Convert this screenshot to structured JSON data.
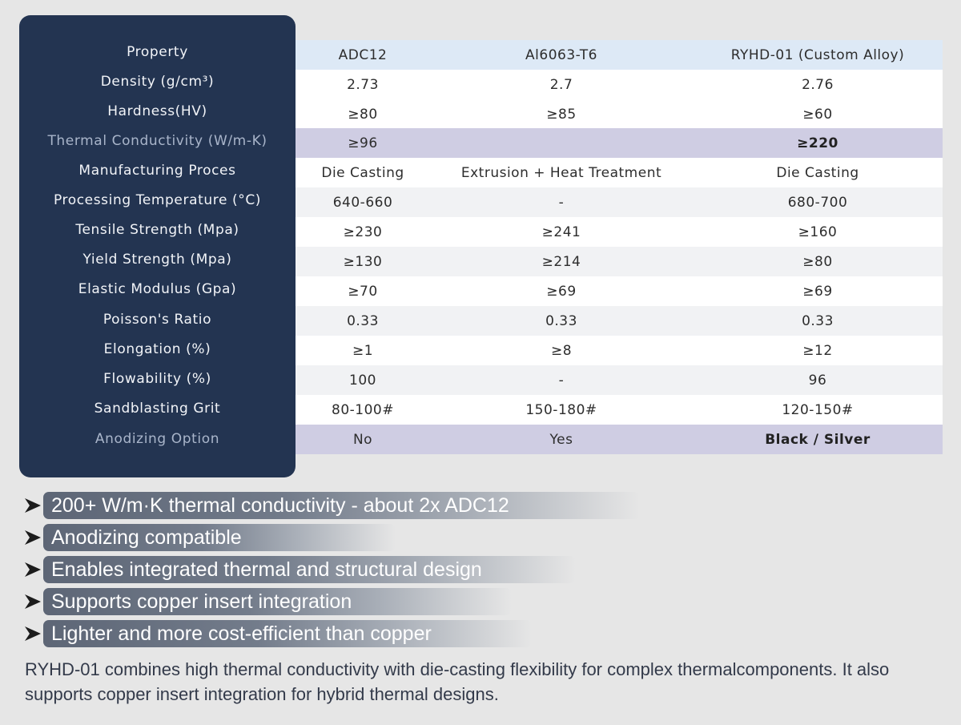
{
  "table": {
    "header": {
      "property": "Property",
      "adc12": "ADC12",
      "al6063": "Al6063-T6",
      "ryhd": "RYHD-01 (Custom Alloy)"
    },
    "rows": [
      {
        "property": "Density (g/cm³)",
        "adc12": "2.73",
        "al6063": "2.7",
        "ryhd": "2.76"
      },
      {
        "property": "Hardness(HV)",
        "adc12": "≥80",
        "al6063": "≥85",
        "ryhd": "≥60"
      },
      {
        "property": "Thermal Conductivity (W/m-K)",
        "adc12": "≥96",
        "al6063": "",
        "ryhd": "≥220"
      },
      {
        "property": "Manufacturing Proces",
        "adc12": "Die Casting",
        "al6063": "Extrusion + Heat Treatment",
        "ryhd": "Die Casting"
      },
      {
        "property": "Processing Temperature (°C)",
        "adc12": "640-660",
        "al6063": "-",
        "ryhd": "680-700"
      },
      {
        "property": "Tensile Strength (Mpa)",
        "adc12": "≥230",
        "al6063": "≥241",
        "ryhd": "≥160"
      },
      {
        "property": "Yield Strength (Mpa)",
        "adc12": "≥130",
        "al6063": "≥214",
        "ryhd": "≥80"
      },
      {
        "property": "Elastic Modulus (Gpa)",
        "adc12": "≥70",
        "al6063": "≥69",
        "ryhd": "≥69"
      },
      {
        "property": "Poisson's Ratio",
        "adc12": "0.33",
        "al6063": "0.33",
        "ryhd": "0.33"
      },
      {
        "property": "Elongation (%)",
        "adc12": "≥1",
        "al6063": "≥8",
        "ryhd": "≥12"
      },
      {
        "property": "Flowability (%)",
        "adc12": "100",
        "al6063": "-",
        "ryhd": "96"
      },
      {
        "property": "Sandblasting Grit",
        "adc12": "80-100#",
        "al6063": "150-180#",
        "ryhd": "120-150#"
      },
      {
        "property": "Anodizing Option",
        "adc12": "No",
        "al6063": "Yes",
        "ryhd": "Black / Silver"
      }
    ]
  },
  "features": [
    "200+ W/m·K thermal conductivity - about 2x ADC12",
    "Anodizing compatible",
    "Enables integrated thermal and structural design",
    "Supports copper insert integration",
    "Lighter and more cost-efficient than copper"
  ],
  "summary": "RYHD-01 combines high thermal conductivity with die-casting flexibility for complex thermalcomponents. It also supports copper insert integration for hybrid thermal designs.",
  "colors": {
    "panel": "#233451",
    "header_row": "#dde9f6",
    "highlight_row": "#cfcde3",
    "arrow_icon": "arrow-bullet-icon"
  }
}
